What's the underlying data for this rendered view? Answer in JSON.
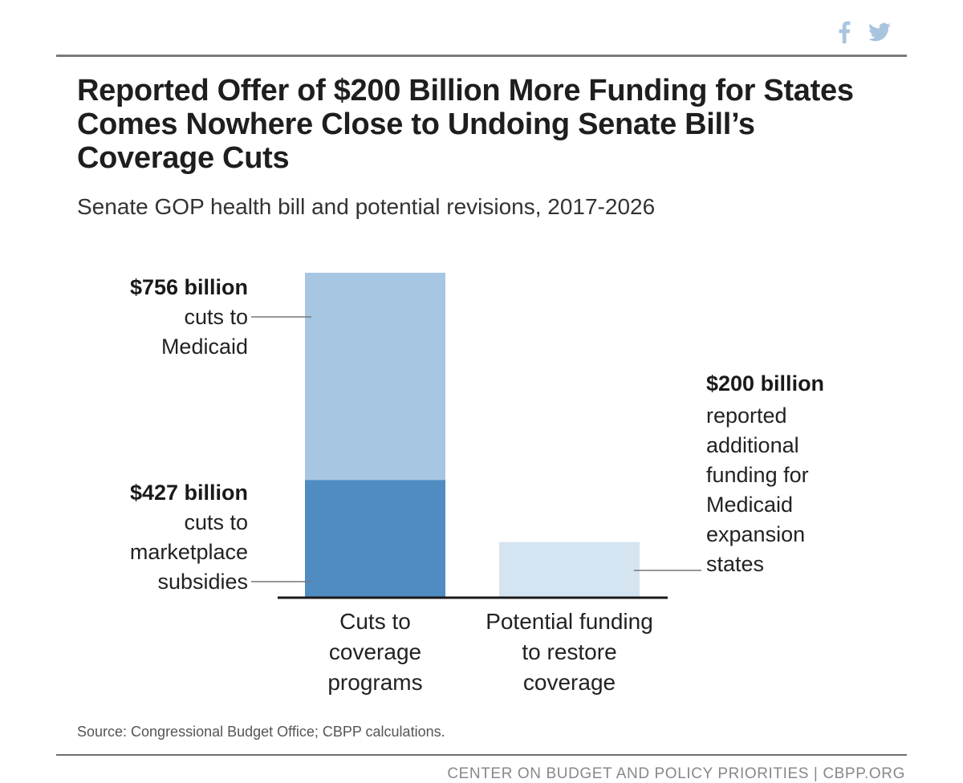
{
  "social": {
    "facebook_icon": "facebook-icon",
    "twitter_icon": "twitter-icon"
  },
  "chart_data": {
    "type": "bar",
    "stacked": true,
    "title": "Reported Offer of $200 Billion More Funding for States Comes Nowhere Close to Undoing Senate Bill’s Coverage Cuts",
    "subtitle": "Senate GOP health bill and potential revisions, 2017-2026",
    "categories": [
      [
        "Cuts to",
        "coverage",
        "programs"
      ],
      [
        "Potential funding",
        "to restore",
        "coverage"
      ]
    ],
    "units": "billions of dollars",
    "ylim": [
      0,
      1300
    ],
    "series": [
      {
        "name": "cuts to marketplace subsidies",
        "values": [
          427,
          0
        ],
        "color": "#4f8cc1"
      },
      {
        "name": "cuts to Medicaid",
        "values": [
          756,
          0
        ],
        "color": "#a7c6e1"
      },
      {
        "name": "reported additional funding for Medicaid expansion states",
        "values": [
          0,
          200
        ],
        "color": "#d5e4f1"
      }
    ],
    "annotations": [
      {
        "amount": "$756 billion",
        "lines": [
          "cuts to",
          "Medicaid"
        ]
      },
      {
        "amount": "$427 billion",
        "lines": [
          "cuts to",
          "marketplace",
          "subsidies"
        ]
      },
      {
        "amount": "$200 billion",
        "lines": [
          "reported",
          "additional",
          "funding for",
          "Medicaid",
          "expansion",
          "states"
        ]
      }
    ]
  },
  "source": "Source: Congressional Budget Office; CBPP calculations.",
  "footer": "CENTER ON BUDGET AND POLICY PRIORITIES | CBPP.ORG"
}
